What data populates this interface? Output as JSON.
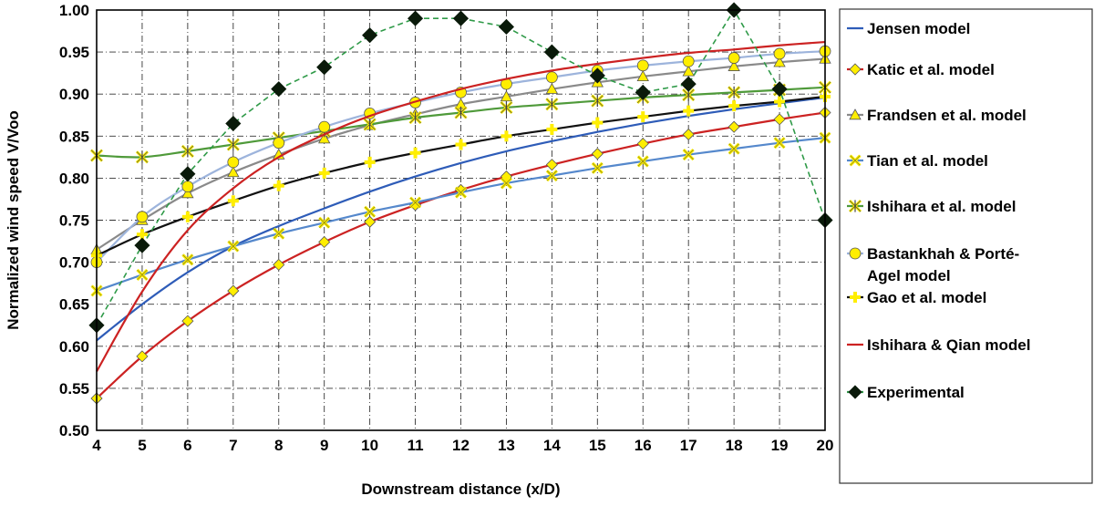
{
  "chart_data": {
    "type": "line",
    "title": "",
    "xlabel": "Downstream distance (x/D)",
    "ylabel": "Normalized wind speed V/Voo",
    "xlim": [
      4,
      20
    ],
    "ylim": [
      0.5,
      1.0
    ],
    "x_ticks": [
      "4",
      "5",
      "6",
      "7",
      "8",
      "9",
      "10",
      "11",
      "12",
      "13",
      "14",
      "15",
      "16",
      "17",
      "18",
      "19",
      "20"
    ],
    "y_ticks": [
      "0.50",
      "0.55",
      "0.60",
      "0.65",
      "0.70",
      "0.75",
      "0.80",
      "0.85",
      "0.90",
      "0.95",
      "1.00"
    ],
    "grid": "dash-dot",
    "legend_position": "right",
    "x": [
      4,
      5,
      6,
      7,
      8,
      9,
      10,
      11,
      12,
      13,
      14,
      15,
      16,
      17,
      18,
      19,
      20
    ],
    "series": [
      {
        "name": "Jensen model",
        "color": "#2e5cb8",
        "line": "solid",
        "marker": "none",
        "smooth": true,
        "values": [
          0.607,
          0.65,
          0.688,
          0.719,
          0.743,
          0.764,
          0.784,
          0.802,
          0.818,
          0.832,
          0.844,
          0.855,
          0.865,
          0.874,
          0.882,
          0.889,
          0.896
        ]
      },
      {
        "name": "Katic et al. model",
        "color": "#cc2222",
        "line": "solid",
        "marker": "diamond",
        "marker_fill": "#ffee00",
        "smooth": true,
        "values": [
          0.538,
          0.588,
          0.63,
          0.666,
          0.697,
          0.724,
          0.748,
          0.768,
          0.786,
          0.802,
          0.816,
          0.829,
          0.841,
          0.852,
          0.861,
          0.87,
          0.878
        ]
      },
      {
        "name": "Frandsen et al. model",
        "color": "#8a8a8a",
        "line": "solid",
        "marker": "triangle",
        "marker_fill": "#ffee00",
        "smooth": true,
        "values": [
          0.715,
          0.75,
          0.782,
          0.807,
          0.828,
          0.847,
          0.863,
          0.876,
          0.888,
          0.897,
          0.906,
          0.914,
          0.921,
          0.927,
          0.933,
          0.938,
          0.942
        ]
      },
      {
        "name": "Tian et al. model",
        "color": "#5588cc",
        "line": "solid",
        "marker": "x",
        "marker_fill": "#ffee00",
        "smooth": true,
        "values": [
          0.666,
          0.685,
          0.703,
          0.719,
          0.734,
          0.747,
          0.76,
          0.771,
          0.783,
          0.794,
          0.803,
          0.812,
          0.82,
          0.828,
          0.835,
          0.842,
          0.848
        ]
      },
      {
        "name": "Ishihara et al. model",
        "color": "#4f9a3a",
        "line": "solid",
        "marker": "asterisk",
        "marker_fill": "#ffee00",
        "smooth": true,
        "values": [
          0.827,
          0.825,
          0.832,
          0.84,
          0.848,
          0.856,
          0.864,
          0.872,
          0.878,
          0.884,
          0.888,
          0.892,
          0.896,
          0.899,
          0.902,
          0.905,
          0.908
        ]
      },
      {
        "name": "Bastankhah & Porté-Agel model",
        "color": "#9db4dc",
        "line": "solid",
        "marker": "circle",
        "marker_fill": "#ffee00",
        "smooth": true,
        "values": [
          0.7,
          0.754,
          0.79,
          0.819,
          0.842,
          0.861,
          0.877,
          0.89,
          0.902,
          0.912,
          0.92,
          0.928,
          0.934,
          0.939,
          0.943,
          0.948,
          0.951
        ]
      },
      {
        "name": "Gao et al. model",
        "color": "#111111",
        "line": "solid",
        "marker": "plus",
        "marker_fill": "#ffee00",
        "smooth": true,
        "values": [
          0.708,
          0.733,
          0.754,
          0.773,
          0.791,
          0.806,
          0.819,
          0.83,
          0.84,
          0.85,
          0.858,
          0.866,
          0.873,
          0.88,
          0.886,
          0.891,
          0.897
        ]
      },
      {
        "name": "Ishihara & Qian model",
        "color": "#cc2222",
        "line": "solid",
        "marker": "none",
        "smooth": true,
        "values": [
          0.57,
          0.665,
          0.738,
          0.788,
          0.825,
          0.852,
          0.874,
          0.891,
          0.906,
          0.918,
          0.928,
          0.936,
          0.943,
          0.949,
          0.953,
          0.958,
          0.962
        ]
      },
      {
        "name": "Experimental",
        "color": "#2f9a48",
        "line": "dashed",
        "marker": "diamond",
        "marker_fill": "#0a1a0a",
        "smooth": false,
        "values": [
          0.625,
          0.72,
          0.805,
          0.865,
          0.906,
          0.932,
          0.97,
          0.99,
          0.99,
          0.98,
          0.95,
          0.922,
          0.902,
          0.912,
          1.0,
          0.906,
          0.75
        ]
      }
    ]
  },
  "legend_items": [
    {
      "name": "Jensen model",
      "line_color": "#2e5cb8",
      "marker": "none",
      "marker_fill": "#ffee00"
    },
    {
      "name": "Katic et al. model",
      "line_color": "#cc2222",
      "marker": "diamond",
      "marker_fill": "#ffee00"
    },
    {
      "name": "Frandsen et al. model",
      "line_color": "#8a8a8a",
      "marker": "triangle",
      "marker_fill": "#ffee00"
    },
    {
      "name": "Tian et al. model",
      "line_color": "#5588cc",
      "marker": "x",
      "marker_fill": "#ffee00"
    },
    {
      "name": "Ishihara et al. model",
      "line_color": "#4f9a3a",
      "marker": "asterisk",
      "marker_fill": "#ffee00"
    },
    {
      "name": "Bastankhah & Porté-",
      "name_line2": "Agel model",
      "line_color": "#9db4dc",
      "marker": "circle",
      "marker_fill": "#ffee00"
    },
    {
      "name": "Gao et al. model",
      "line_color": "#111111",
      "marker": "plus",
      "marker_fill": "#ffee00"
    },
    {
      "name": "Ishihara & Qian model",
      "line_color": "#cc2222",
      "marker": "none",
      "marker_fill": "#ffee00"
    },
    {
      "name": "Experimental",
      "line_color": "#2f9a48",
      "marker": "diamond",
      "marker_fill": "#0a1a0a"
    }
  ]
}
